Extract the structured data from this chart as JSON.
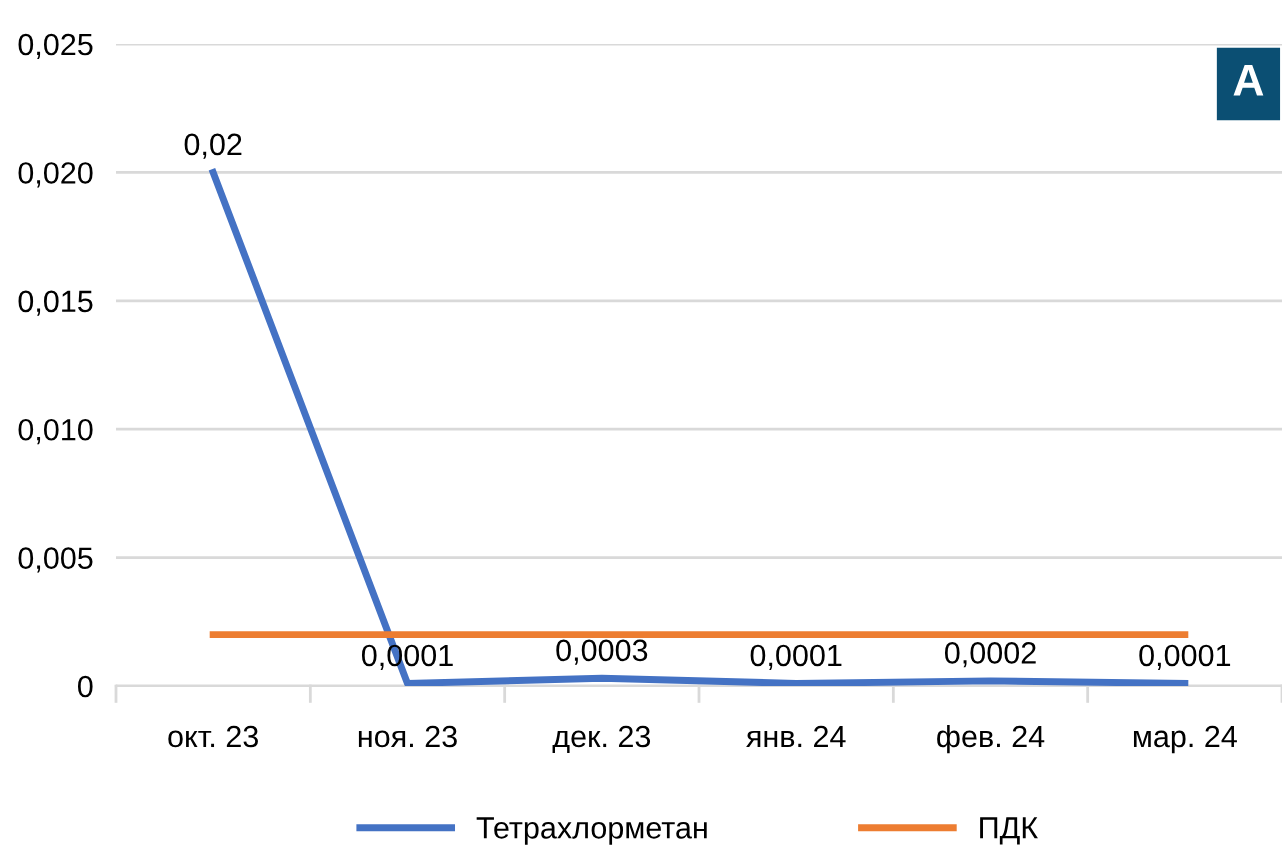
{
  "chart_data": {
    "type": "line",
    "categories": [
      "окт. 23",
      "ноя. 23",
      "дек. 23",
      "янв. 24",
      "фев. 24",
      "мар. 24"
    ],
    "series": [
      {
        "name": "Тетрахлорметан",
        "color": "#4472c4",
        "values": [
          0.02,
          0.0001,
          0.0003,
          0.0001,
          0.0002,
          0.0001
        ],
        "value_labels": [
          "0,02",
          "0,0001",
          "0,0003",
          "0,0001",
          "0,0002",
          "0,0001"
        ]
      },
      {
        "name": "ПДК",
        "color": "#ed7d31",
        "values": [
          0.002,
          0.002,
          0.002,
          0.002,
          0.002,
          0.002
        ]
      }
    ],
    "ylim": [
      0,
      0.025
    ],
    "yticks": [
      {
        "value": 0,
        "label": "0"
      },
      {
        "value": 0.005,
        "label": "0,005"
      },
      {
        "value": 0.01,
        "label": "0,010"
      },
      {
        "value": 0.015,
        "label": "0,015"
      },
      {
        "value": 0.02,
        "label": "0,020"
      },
      {
        "value": 0.025,
        "label": "0,025"
      }
    ],
    "grid": "y",
    "legend": "bottom",
    "marker": "none",
    "line_style": "solid",
    "annotations": [
      "A"
    ]
  }
}
